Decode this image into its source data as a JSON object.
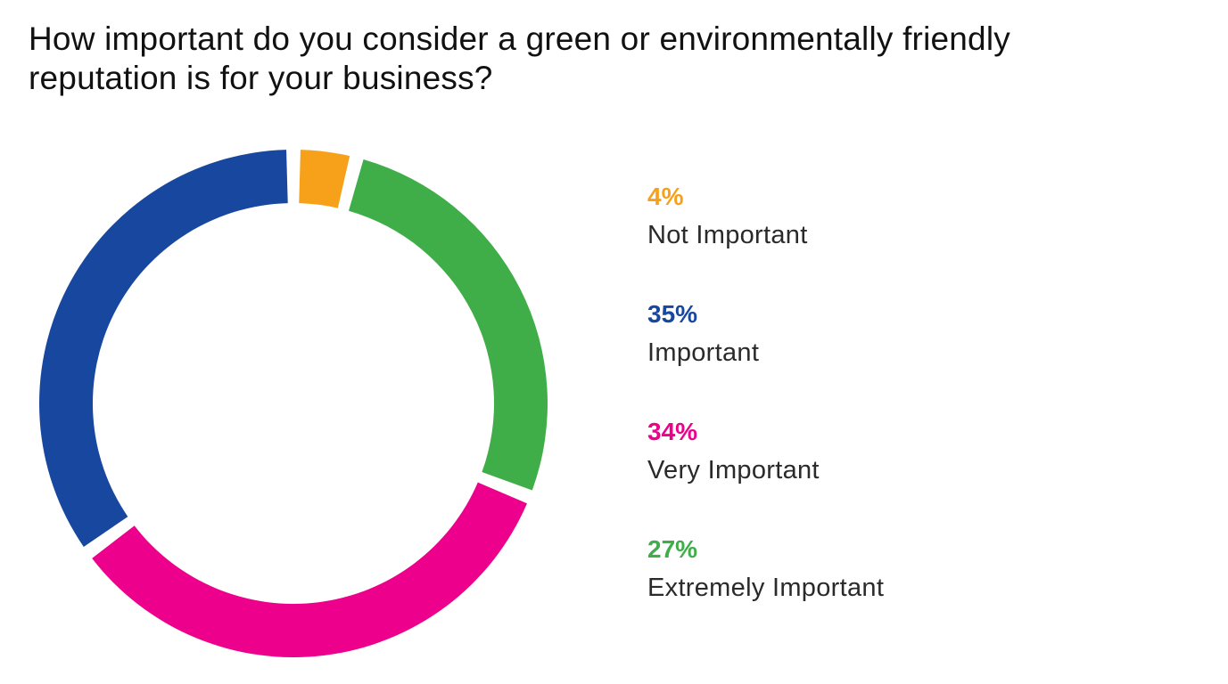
{
  "chart_data": {
    "type": "pie",
    "variant": "donut",
    "title": "How important do you consider a green or environmentally friendly reputation is for your business?",
    "title_lines": [
      "How important do you consider a green or environmentally friendly",
      "reputation is for your business?"
    ],
    "slices": [
      {
        "label": "Not Important",
        "value": 4,
        "value_text": "4%",
        "color": "#f7a11a"
      },
      {
        "label": "Important",
        "value": 35,
        "value_text": "35%",
        "color": "#17479e"
      },
      {
        "label": "Very Important",
        "value": 34,
        "value_text": "34%",
        "color": "#ec008c"
      },
      {
        "label": "Extremely Important",
        "value": 27,
        "value_text": "27%",
        "color": "#3fae49"
      }
    ],
    "slice_order_clockwise_from_top": [
      "Not Important",
      "Extremely Important",
      "Very Important",
      "Important"
    ],
    "legend_placement": "right"
  }
}
